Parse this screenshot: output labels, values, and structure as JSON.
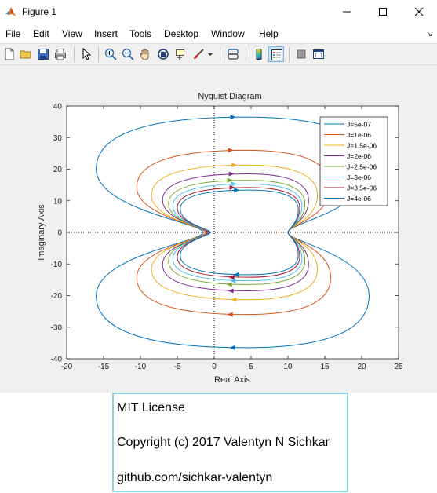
{
  "window": {
    "title": "Figure 1",
    "icon": "matlab-logo-icon",
    "controls": [
      "minimize-icon",
      "maximize-icon",
      "close-icon"
    ]
  },
  "menu": [
    "File",
    "Edit",
    "View",
    "Insert",
    "Tools",
    "Desktop",
    "Window",
    "Help"
  ],
  "toolbar": {
    "icons": [
      "new-figure-icon",
      "open-file-icon",
      "save-icon",
      "print-icon",
      "pointer-icon",
      "zoom-in-icon",
      "zoom-out-icon",
      "pan-hand-icon",
      "rotate-3d-icon",
      "data-cursor-icon",
      "brush-icon",
      "link-plot-icon",
      "colorbar-icon",
      "legend-icon",
      "hide-plot-tools-icon",
      "show-plot-tools-icon"
    ]
  },
  "chart_data": {
    "type": "line",
    "title": "Nyquist Diagram",
    "xlabel": "Real Axis",
    "ylabel": "Imaginary Axis",
    "xlim": [
      -20,
      25
    ],
    "ylim": [
      -40,
      40
    ],
    "xticks": [
      "-20",
      "-15",
      "-10",
      "-5",
      "0",
      "5",
      "10",
      "15",
      "20",
      "25"
    ],
    "yticks": [
      "40",
      "30",
      "20",
      "10",
      "0",
      "-10",
      "-20",
      "-30",
      "-40"
    ],
    "grid": false,
    "legend_position": "top-right",
    "series": [
      {
        "name": "J=5e-07",
        "color": "#0072bd",
        "left_real": -1.5,
        "right_real": 10,
        "left_extent": -16,
        "right_extent": 21,
        "peak_imag": 36.5,
        "arrow_real": 2.5
      },
      {
        "name": "J=1e-06",
        "color": "#d95319",
        "left_real": -1.2,
        "right_real": 10,
        "left_extent": -10.5,
        "right_extent": 15.8,
        "peak_imag": 26,
        "arrow_real": 2.2
      },
      {
        "name": "J=1.5e-06",
        "color": "#edb120",
        "left_real": -1.0,
        "right_real": 10,
        "left_extent": -8.5,
        "right_extent": 14,
        "peak_imag": 21.3,
        "arrow_real": 2.7
      },
      {
        "name": "J=2e-06",
        "color": "#7e2f8e",
        "left_real": -0.9,
        "right_real": 10,
        "left_extent": -7,
        "right_extent": 12.8,
        "peak_imag": 18.5,
        "arrow_real": 2.3
      },
      {
        "name": "J=2.5e-06",
        "color": "#77ac30",
        "left_real": -0.8,
        "right_real": 10,
        "left_extent": -6.2,
        "right_extent": 12.3,
        "peak_imag": 16.5,
        "arrow_real": 2.1
      },
      {
        "name": "J=3e-06",
        "color": "#4dbeee",
        "left_real": -0.7,
        "right_real": 10,
        "left_extent": -5.6,
        "right_extent": 11.9,
        "peak_imag": 15.3,
        "arrow_real": 2.6
      },
      {
        "name": "J=3.5e-06",
        "color": "#a2142f",
        "left_real": -0.6,
        "right_real": 10,
        "left_extent": -5.0,
        "right_extent": 11.6,
        "peak_imag": 14.2,
        "arrow_real": 2.4
      },
      {
        "name": "J=4e-06",
        "color": "#0072bd",
        "left_real": -0.5,
        "right_real": 10,
        "left_extent": -4.6,
        "right_extent": 11.4,
        "peak_imag": 13.4,
        "arrow_real": 3.0
      }
    ]
  },
  "license": {
    "line1": "MIT License",
    "line2": "Copyright (c) 2017 Valentyn N Sichkar",
    "line3": "github.com/sichkar-valentyn"
  }
}
